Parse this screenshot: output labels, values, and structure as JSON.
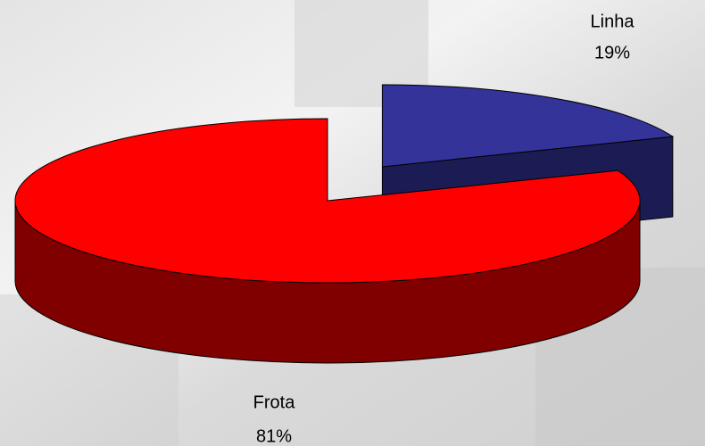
{
  "chart_data": {
    "type": "pie",
    "categories": [
      "Linha",
      "Frota"
    ],
    "values": [
      19,
      81
    ],
    "value_labels": [
      "19%",
      "81%"
    ],
    "colors": [
      "#333399",
      "#ff0000"
    ],
    "side_colors": [
      "#1c1c55",
      "#800000"
    ]
  }
}
